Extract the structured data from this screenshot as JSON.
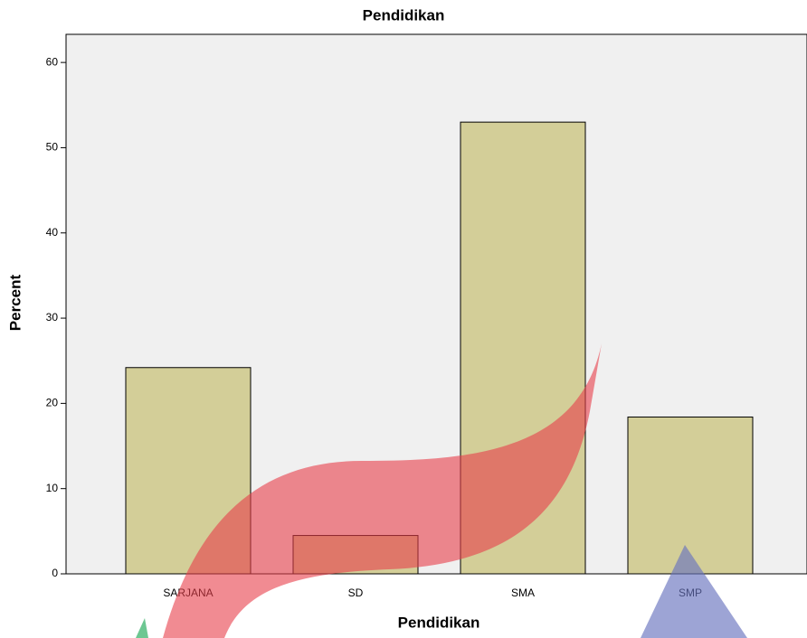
{
  "chart_data": {
    "type": "bar",
    "title": "Pendidikan",
    "x_label": "Pendidikan",
    "y_label": "Percent",
    "categories": [
      "SARJANA",
      "SD",
      "SMA",
      "SMP"
    ],
    "values": [
      24.2,
      4.5,
      53.0,
      18.4
    ],
    "color": "#d3ce98",
    "ylim": [
      0,
      63.3
    ],
    "yticks": [
      0,
      10,
      20,
      30,
      40,
      50,
      60
    ],
    "grid": false
  }
}
